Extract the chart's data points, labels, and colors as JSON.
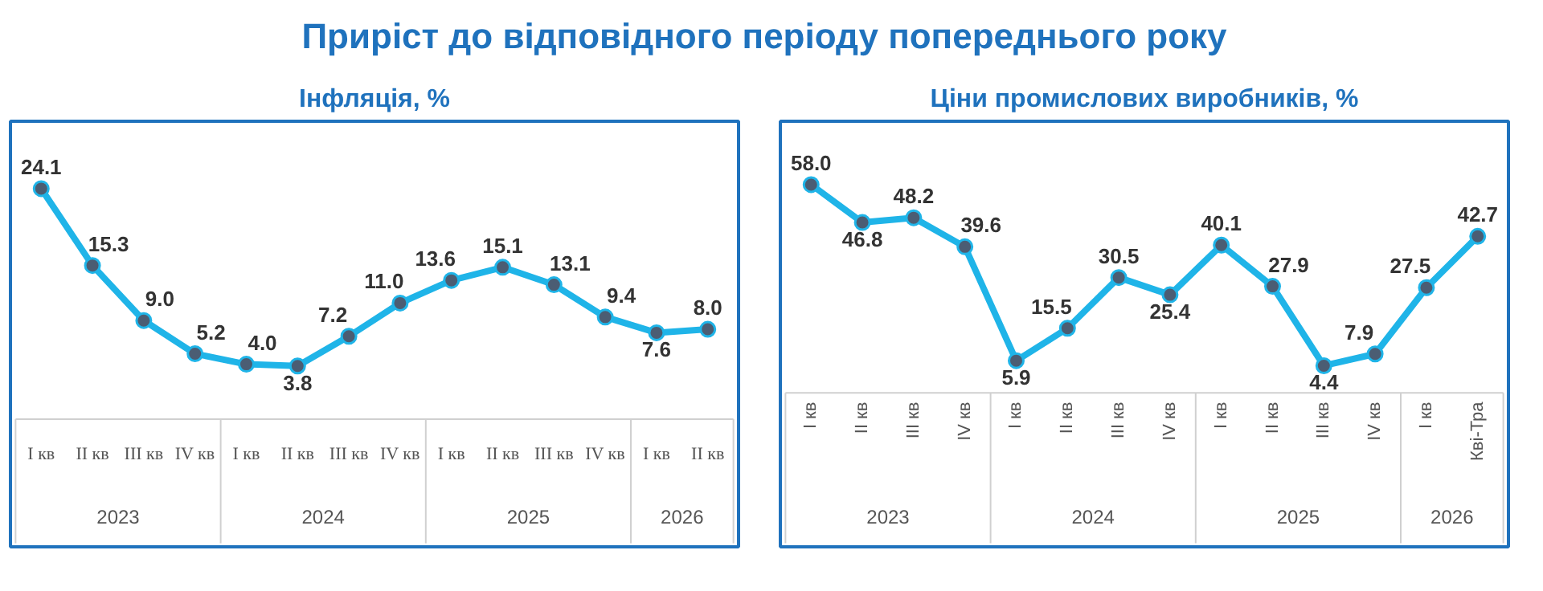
{
  "chart_data": [
    {
      "type": "other",
      "title": "Приріст до відповідного періоду попереднього року"
    },
    {
      "type": "line",
      "title": "Інфляція, %",
      "categories": [
        "I кв",
        "II кв",
        "III кв",
        "IV кв",
        "I кв",
        "II кв",
        "III кв",
        "IV кв",
        "I кв",
        "II кв",
        "III кв",
        "IV кв",
        "I кв",
        "II кв"
      ],
      "series": [
        {
          "color": "#1fb4e8",
          "values": [
            24.1,
            15.3,
            9.0,
            5.2,
            4.0,
            3.8,
            7.2,
            11.0,
            13.6,
            15.1,
            13.1,
            9.4,
            7.6,
            8.0
          ],
          "value_labels": [
            "24.1",
            "15.3",
            "9.0",
            "5.2",
            "4.0",
            "3.8",
            "7.2",
            "11.0",
            "13.6",
            "15.1",
            "13.1",
            "9.4",
            "7.6",
            "8.0"
          ]
        }
      ],
      "annotations": [
        "2023",
        "2024",
        "2025",
        "2026"
      ],
      "marker": "circle",
      "line_style": "solid"
    },
    {
      "type": "line",
      "title": "Ціни промислових виробників, %",
      "categories": [
        "I кв",
        "II кв",
        "III кв",
        "IV кв",
        "I кв",
        "II кв",
        "III кв",
        "IV кв",
        "I кв",
        "II кв",
        "III кв",
        "IV кв",
        "I кв",
        "Кві-Тра"
      ],
      "series": [
        {
          "color": "#1fb4e8",
          "values": [
            58.0,
            46.8,
            48.2,
            39.6,
            5.9,
            15.5,
            30.5,
            25.4,
            40.1,
            27.9,
            4.4,
            7.9,
            27.5,
            42.7
          ],
          "value_labels": [
            "58.0",
            "46.8",
            "48.2",
            "39.6",
            "5.9",
            "15.5",
            "30.5",
            "25.4",
            "40.1",
            "27.9",
            "4.4",
            "7.9",
            "27.5",
            "42.7"
          ]
        }
      ],
      "annotations": [
        "2023",
        "2024",
        "2025",
        "2026"
      ],
      "marker": "circle",
      "line_style": "solid"
    }
  ]
}
